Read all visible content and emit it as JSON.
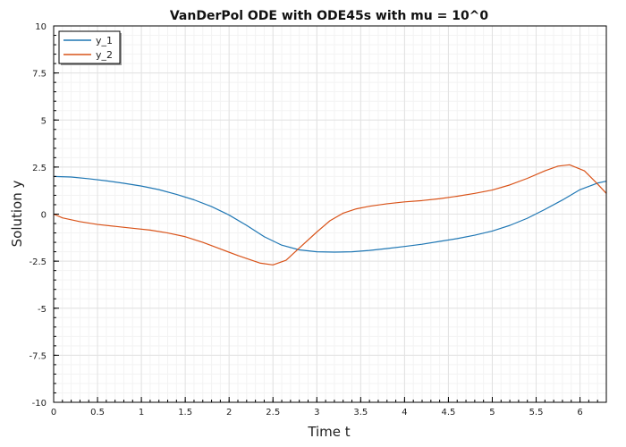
{
  "chart_data": {
    "type": "line",
    "title": "VanDerPol ODE with ODE45s with mu = 10^0",
    "xlabel": "Time t",
    "ylabel": "Solution y",
    "xlim": [
      0,
      6.3
    ],
    "ylim": [
      -10,
      10
    ],
    "x_ticks": [
      0,
      0.5,
      1,
      1.5,
      2,
      2.5,
      3,
      3.5,
      4,
      4.5,
      5,
      5.5,
      6
    ],
    "x_tick_labels": [
      "0",
      "0.5",
      "1",
      "1.5",
      "2",
      "2.5",
      "3",
      "3.5",
      "4",
      "4.5",
      "5",
      "5.5",
      "6"
    ],
    "y_ticks": [
      -10,
      -7.5,
      -5,
      -2.5,
      0,
      2.5,
      5,
      7.5,
      10
    ],
    "y_tick_labels": [
      "-10",
      "-7.5",
      "-5",
      "-2.5",
      "0",
      "2.5",
      "5",
      "7.5",
      "10"
    ],
    "grid": true,
    "legend_position": "top-left",
    "series": [
      {
        "name": "y_1",
        "color": "#1f77b4",
        "x": [
          0,
          0.2,
          0.4,
          0.6,
          0.8,
          1.0,
          1.2,
          1.4,
          1.6,
          1.8,
          2.0,
          2.2,
          2.4,
          2.6,
          2.8,
          3.0,
          3.2,
          3.4,
          3.6,
          3.8,
          4.0,
          4.2,
          4.4,
          4.6,
          4.8,
          5.0,
          5.2,
          5.4,
          5.6,
          5.8,
          6.0,
          6.2,
          6.3
        ],
        "y": [
          2.0,
          1.97,
          1.88,
          1.77,
          1.64,
          1.49,
          1.3,
          1.05,
          0.76,
          0.4,
          -0.05,
          -0.6,
          -1.2,
          -1.65,
          -1.9,
          -2.0,
          -2.02,
          -2.0,
          -1.93,
          -1.83,
          -1.72,
          -1.6,
          -1.45,
          -1.3,
          -1.12,
          -0.9,
          -0.6,
          -0.22,
          0.25,
          0.75,
          1.3,
          1.65,
          1.75
        ]
      },
      {
        "name": "y_2",
        "color": "#d95319",
        "x": [
          0,
          0.1,
          0.3,
          0.5,
          0.7,
          0.9,
          1.1,
          1.3,
          1.5,
          1.7,
          1.9,
          2.1,
          2.35,
          2.5,
          2.65,
          2.8,
          3.0,
          3.15,
          3.3,
          3.45,
          3.6,
          3.8,
          4.0,
          4.2,
          4.4,
          4.6,
          4.8,
          5.0,
          5.2,
          5.4,
          5.6,
          5.75,
          5.88,
          6.05,
          6.2,
          6.3
        ],
        "y": [
          0.0,
          -0.2,
          -0.4,
          -0.55,
          -0.65,
          -0.75,
          -0.85,
          -1.0,
          -1.2,
          -1.5,
          -1.85,
          -2.2,
          -2.6,
          -2.7,
          -2.45,
          -1.8,
          -0.95,
          -0.35,
          0.05,
          0.28,
          0.42,
          0.55,
          0.65,
          0.72,
          0.82,
          0.95,
          1.1,
          1.28,
          1.55,
          1.9,
          2.3,
          2.55,
          2.62,
          2.3,
          1.6,
          1.1
        ]
      }
    ]
  }
}
